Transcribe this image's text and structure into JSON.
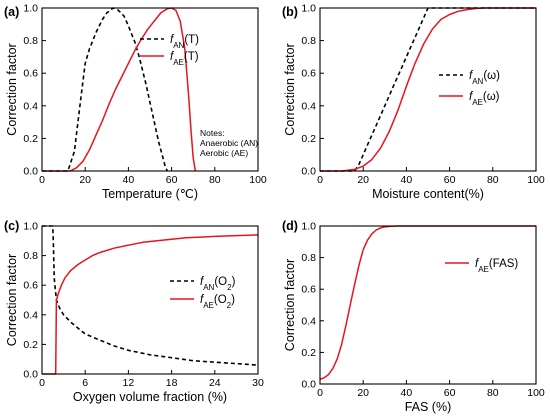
{
  "chart_data": [
    {
      "type": "line",
      "panel_label": "(a)",
      "xlabel": "Temperature (℃)",
      "ylabel": "Correction factor",
      "xlim": [
        0,
        100
      ],
      "ylim": [
        0,
        1.0
      ],
      "xticks": [
        "0",
        "20",
        "40",
        "60",
        "80",
        "100"
      ],
      "yticks": [
        "0.0",
        "0.2",
        "0.4",
        "0.6",
        "0.8",
        "1.0"
      ],
      "notes": [
        "Notes:",
        "Anaerobic (AN)",
        "Aerobic    (AE)"
      ],
      "series": [
        {
          "name": "fAN(T)",
          "name_italic": "f",
          "name_sub": "AN",
          "name_tail": "(T)",
          "color": "#000000",
          "dash": "dashed",
          "x": [
            0,
            12,
            15,
            18,
            20,
            22,
            25,
            28,
            30,
            33,
            35,
            38,
            40,
            43,
            45,
            48,
            50,
            52,
            54,
            56,
            57,
            58
          ],
          "y": [
            0,
            0,
            0.12,
            0.45,
            0.66,
            0.75,
            0.85,
            0.93,
            0.97,
            1.0,
            0.99,
            0.95,
            0.89,
            0.79,
            0.7,
            0.54,
            0.42,
            0.3,
            0.18,
            0.08,
            0.03,
            0
          ]
        },
        {
          "name": "fAE(T)",
          "name_italic": "f",
          "name_sub": "AE",
          "name_tail": "(T)",
          "color": "#e8141b",
          "dash": "solid",
          "x": [
            0,
            5,
            10,
            13,
            16,
            19,
            22,
            25,
            28,
            31,
            34,
            37,
            40,
            43,
            46,
            49,
            52,
            55,
            58,
            60,
            62,
            64,
            66,
            67,
            68,
            69,
            70,
            71
          ],
          "y": [
            0,
            0,
            0,
            0,
            0.02,
            0.06,
            0.13,
            0.22,
            0.31,
            0.41,
            0.5,
            0.58,
            0.66,
            0.74,
            0.81,
            0.87,
            0.92,
            0.97,
            0.995,
            1.0,
            0.985,
            0.92,
            0.76,
            0.61,
            0.44,
            0.25,
            0.08,
            0
          ]
        }
      ],
      "legend_position": "top-right"
    },
    {
      "type": "line",
      "panel_label": "(b)",
      "xlabel": "Moisture content(%)",
      "ylabel": "Correction factor",
      "xlim": [
        0,
        100
      ],
      "ylim": [
        0,
        1.0
      ],
      "xticks": [
        "0",
        "20",
        "40",
        "60",
        "80",
        "100"
      ],
      "yticks": [
        "0.0",
        "0.2",
        "0.4",
        "0.6",
        "0.8",
        "1.0"
      ],
      "series": [
        {
          "name": "fAN(ω)",
          "name_italic": "f",
          "name_sub": "AN",
          "name_tail": "(ω)",
          "color": "#000000",
          "dash": "dashed",
          "x": [
            0,
            16,
            18,
            22,
            26,
            30,
            34,
            38,
            42,
            46,
            50,
            52,
            60,
            80,
            100
          ],
          "y": [
            0,
            0,
            0.04,
            0.16,
            0.28,
            0.4,
            0.52,
            0.64,
            0.76,
            0.88,
            1.0,
            1.0,
            1.0,
            1.0,
            1.0
          ]
        },
        {
          "name": "fAE(ω)",
          "name_italic": "f",
          "name_sub": "AE",
          "name_tail": "(ω)",
          "color": "#e8141b",
          "dash": "solid",
          "x": [
            0,
            10,
            16,
            20,
            24,
            28,
            32,
            36,
            40,
            44,
            48,
            52,
            56,
            60,
            64,
            68,
            72,
            76,
            80,
            90,
            100
          ],
          "y": [
            0,
            0,
            0.01,
            0.03,
            0.07,
            0.14,
            0.24,
            0.37,
            0.52,
            0.66,
            0.78,
            0.87,
            0.93,
            0.96,
            0.98,
            0.99,
            0.997,
            1.0,
            1.0,
            1.0,
            1.0
          ]
        }
      ],
      "legend_position": "center-right"
    },
    {
      "type": "line",
      "panel_label": "(c)",
      "xlabel": "Oxygen volume fraction (%)",
      "ylabel": "Correction factor",
      "xlim": [
        0,
        30
      ],
      "ylim": [
        0,
        1.0
      ],
      "xticks": [
        "0",
        "6",
        "12",
        "18",
        "24",
        "30"
      ],
      "xtick_values": [
        0,
        6,
        12,
        18,
        24,
        30
      ],
      "yticks": [
        "0.0",
        "0.2",
        "0.4",
        "0.6",
        "0.8",
        "1.0"
      ],
      "series": [
        {
          "name": "fAN(O2)",
          "name_italic": "f",
          "name_sub": "AN",
          "name_tail": "(O",
          "name_tail_sub": "2",
          "name_tail_end": ")",
          "color": "#000000",
          "dash": "dashed",
          "x": [
            0,
            1.5,
            1.6,
            1.7,
            2,
            2.5,
            3,
            4,
            5,
            6,
            8,
            10,
            12,
            15,
            18,
            21,
            24,
            27,
            30
          ],
          "y": [
            1.0,
            1.0,
            0.85,
            0.65,
            0.5,
            0.44,
            0.4,
            0.35,
            0.31,
            0.27,
            0.23,
            0.19,
            0.16,
            0.13,
            0.11,
            0.09,
            0.08,
            0.07,
            0.06
          ]
        },
        {
          "name": "fAE(O2)",
          "name_italic": "f",
          "name_sub": "AE",
          "name_tail": "(O",
          "name_tail_sub": "2",
          "name_tail_end": ")",
          "color": "#e8141b",
          "dash": "solid",
          "x": [
            0,
            1.9,
            2,
            2.3,
            2.7,
            3.2,
            4,
            5,
            6,
            7,
            8,
            10,
            12,
            14,
            16,
            18,
            20,
            22,
            24,
            27,
            30
          ],
          "y": [
            0,
            0,
            0.5,
            0.55,
            0.6,
            0.65,
            0.7,
            0.74,
            0.77,
            0.8,
            0.82,
            0.85,
            0.87,
            0.89,
            0.9,
            0.91,
            0.92,
            0.925,
            0.93,
            0.935,
            0.94
          ]
        }
      ],
      "legend_position": "center-right"
    },
    {
      "type": "line",
      "panel_label": "(d)",
      "xlabel": "FAS (%)",
      "ylabel": "Correction factor",
      "xlim": [
        0,
        100
      ],
      "ylim": [
        0,
        1.0
      ],
      "xticks": [
        "0",
        "20",
        "40",
        "60",
        "80",
        "100"
      ],
      "yticks": [
        "0.0",
        "0.2",
        "0.4",
        "0.6",
        "0.8",
        "1.0"
      ],
      "series": [
        {
          "name": "fAE(FAS)",
          "name_italic": "f",
          "name_sub": "AE",
          "name_tail": "(FAS)",
          "color": "#e8141b",
          "dash": "solid",
          "x": [
            0,
            2,
            4,
            6,
            8,
            10,
            12,
            14,
            16,
            18,
            20,
            22,
            24,
            26,
            28,
            30,
            33,
            36,
            40,
            50,
            60,
            80,
            100
          ],
          "y": [
            0.03,
            0.04,
            0.06,
            0.1,
            0.16,
            0.25,
            0.37,
            0.5,
            0.63,
            0.75,
            0.85,
            0.91,
            0.95,
            0.975,
            0.988,
            0.994,
            0.998,
            1.0,
            1.0,
            1.0,
            1.0,
            1.0,
            1.0
          ]
        }
      ],
      "legend_position": "top-center"
    }
  ]
}
